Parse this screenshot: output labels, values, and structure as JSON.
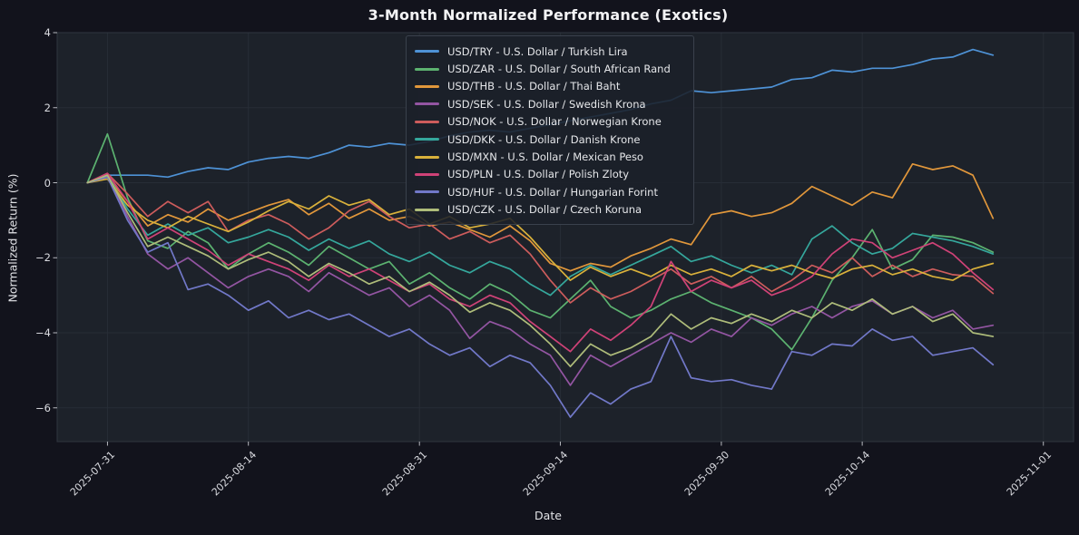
{
  "figure": {
    "title": "3-Month Normalized Performance (Exotics)",
    "background_color": "#12131c",
    "plot_background_color": "#1d222a",
    "grid_color": "#272d36",
    "axis_text_color": "#dadbe0"
  },
  "chart_data": {
    "type": "line",
    "title": "3-Month Normalized Performance (Exotics)",
    "xlabel": "Date",
    "ylabel": "Normalized Return (%)",
    "grid": true,
    "legend_position": "upper center",
    "x_range": [
      "2025-07-26",
      "2025-11-04"
    ],
    "y_range": [
      -6.9,
      4.0
    ],
    "x_ticks": [
      "2025-07-31",
      "2025-08-14",
      "2025-08-31",
      "2025-09-14",
      "2025-09-30",
      "2025-10-14",
      "2025-11-01"
    ],
    "y_ticks": [
      4,
      2,
      0,
      -2,
      -4,
      -6
    ],
    "y_tick_labels": [
      "4",
      "2",
      "0",
      "−2",
      "−4",
      "−6"
    ],
    "x": [
      "2025-07-29",
      "2025-07-31",
      "2025-08-02",
      "2025-08-04",
      "2025-08-06",
      "2025-08-08",
      "2025-08-10",
      "2025-08-12",
      "2025-08-14",
      "2025-08-16",
      "2025-08-18",
      "2025-08-20",
      "2025-08-22",
      "2025-08-24",
      "2025-08-26",
      "2025-08-28",
      "2025-08-30",
      "2025-09-01",
      "2025-09-03",
      "2025-09-05",
      "2025-09-07",
      "2025-09-09",
      "2025-09-11",
      "2025-09-13",
      "2025-09-15",
      "2025-09-17",
      "2025-09-19",
      "2025-09-21",
      "2025-09-23",
      "2025-09-25",
      "2025-09-27",
      "2025-09-29",
      "2025-10-01",
      "2025-10-03",
      "2025-10-05",
      "2025-10-07",
      "2025-10-09",
      "2025-10-11",
      "2025-10-13",
      "2025-10-15",
      "2025-10-17",
      "2025-10-19",
      "2025-10-21",
      "2025-10-23",
      "2025-10-25",
      "2025-10-27"
    ],
    "series": [
      {
        "pair": "USD/TRY",
        "label": "USD/TRY - U.S. Dollar / Turkish Lira",
        "color": "#4e92d6",
        "values": [
          0,
          0.2,
          0.2,
          0.2,
          0.15,
          0.3,
          0.4,
          0.35,
          0.55,
          0.65,
          0.7,
          0.65,
          0.8,
          1,
          0.95,
          1.05,
          1,
          1.1,
          1.25,
          1.35,
          1.4,
          1.35,
          1.45,
          1.55,
          1.65,
          1.75,
          1.85,
          1.95,
          2.1,
          2.2,
          2.45,
          2.4,
          2.45,
          2.5,
          2.55,
          2.75,
          2.8,
          3,
          2.95,
          3.05,
          3.05,
          3.15,
          3.3,
          3.35,
          3.55,
          3.4
        ]
      },
      {
        "pair": "USD/ZAR",
        "label": "USD/ZAR - U.S. Dollar / South African Rand",
        "color": "#5cb270",
        "values": [
          0,
          1.3,
          -0.4,
          -1.55,
          -1.75,
          -1.3,
          -1.6,
          -2.3,
          -1.9,
          -1.6,
          -1.85,
          -2.2,
          -1.7,
          -2,
          -2.3,
          -2.1,
          -2.7,
          -2.4,
          -2.8,
          -3.1,
          -2.7,
          -2.95,
          -3.4,
          -3.6,
          -3.1,
          -2.6,
          -3.3,
          -3.6,
          -3.4,
          -3.1,
          -2.9,
          -3.2,
          -3.4,
          -3.6,
          -3.9,
          -4.45,
          -3.6,
          -2.6,
          -2,
          -1.25,
          -2.3,
          -2.05,
          -1.4,
          -1.45,
          -1.6,
          -1.85
        ]
      },
      {
        "pair": "USD/THB",
        "label": "USD/THB - U.S. Dollar / Thai Baht",
        "color": "#e1973b",
        "values": [
          0,
          0.15,
          -0.5,
          -1.15,
          -0.85,
          -1.05,
          -0.7,
          -1,
          -0.8,
          -0.6,
          -0.45,
          -0.85,
          -0.55,
          -0.95,
          -0.7,
          -1,
          -0.9,
          -1.15,
          -1.05,
          -1.25,
          -1.45,
          -1.15,
          -1.55,
          -2.15,
          -2.35,
          -2.15,
          -2.25,
          -1.95,
          -1.75,
          -1.5,
          -1.65,
          -0.85,
          -0.75,
          -0.9,
          -0.8,
          -0.55,
          -0.1,
          -0.35,
          -0.6,
          -0.25,
          -0.4,
          0.5,
          0.35,
          0.45,
          0.2,
          -0.95
        ]
      },
      {
        "pair": "USD/SEK",
        "label": "USD/SEK - U.S. Dollar / Swedish Krona",
        "color": "#9355a2",
        "values": [
          0,
          0.2,
          -0.9,
          -1.9,
          -2.3,
          -2,
          -2.4,
          -2.8,
          -2.5,
          -2.3,
          -2.5,
          -2.9,
          -2.4,
          -2.7,
          -3,
          -2.8,
          -3.3,
          -3,
          -3.4,
          -4.15,
          -3.7,
          -3.9,
          -4.3,
          -4.6,
          -5.4,
          -4.6,
          -4.9,
          -4.6,
          -4.3,
          -4,
          -4.25,
          -3.9,
          -4.1,
          -3.6,
          -3.8,
          -3.5,
          -3.3,
          -3.6,
          -3.3,
          -3.15,
          -3.5,
          -3.3,
          -3.6,
          -3.4,
          -3.9,
          -3.8
        ]
      },
      {
        "pair": "USD/NOK",
        "label": "USD/NOK - U.S. Dollar / Norwegian Krone",
        "color": "#cd5c5c",
        "values": [
          0,
          0.25,
          -0.3,
          -0.9,
          -0.5,
          -0.8,
          -0.5,
          -1.3,
          -1,
          -0.85,
          -1.1,
          -1.5,
          -1.2,
          -0.75,
          -0.5,
          -0.9,
          -1.2,
          -1.1,
          -1.5,
          -1.3,
          -1.6,
          -1.4,
          -1.9,
          -2.6,
          -3.2,
          -2.8,
          -3.1,
          -2.9,
          -2.6,
          -2.3,
          -2.7,
          -2.5,
          -2.8,
          -2.5,
          -2.9,
          -2.6,
          -2.2,
          -2.4,
          -2,
          -2.5,
          -2.2,
          -2.5,
          -2.3,
          -2.45,
          -2.5,
          -2.95
        ]
      },
      {
        "pair": "USD/DKK",
        "label": "USD/DKK - U.S. Dollar / Danish Krone",
        "color": "#35a79c",
        "values": [
          0,
          0.2,
          -0.7,
          -1.4,
          -1.1,
          -1.4,
          -1.2,
          -1.6,
          -1.45,
          -1.25,
          -1.45,
          -1.8,
          -1.5,
          -1.75,
          -1.55,
          -1.9,
          -2.1,
          -1.85,
          -2.2,
          -2.4,
          -2.1,
          -2.3,
          -2.7,
          -3,
          -2.5,
          -2.2,
          -2.45,
          -2.2,
          -1.95,
          -1.7,
          -2.1,
          -1.95,
          -2.2,
          -2.4,
          -2.2,
          -2.45,
          -1.5,
          -1.15,
          -1.6,
          -1.9,
          -1.75,
          -1.35,
          -1.45,
          -1.55,
          -1.7,
          -1.9
        ]
      },
      {
        "pair": "USD/MXN",
        "label": "USD/MXN - U.S. Dollar / Mexican Peso",
        "color": "#d9b13b",
        "values": [
          0,
          0.1,
          -0.6,
          -1,
          -1.2,
          -0.9,
          -1.1,
          -1.3,
          -1.05,
          -0.75,
          -0.5,
          -0.7,
          -0.35,
          -0.6,
          -0.45,
          -0.85,
          -0.7,
          -1.1,
          -0.9,
          -1.2,
          -1.1,
          -0.95,
          -1.45,
          -2.05,
          -2.6,
          -2.25,
          -2.5,
          -2.3,
          -2.5,
          -2.2,
          -2.45,
          -2.3,
          -2.5,
          -2.2,
          -2.35,
          -2.2,
          -2.4,
          -2.55,
          -2.3,
          -2.2,
          -2.45,
          -2.3,
          -2.5,
          -2.6,
          -2.3,
          -2.15
        ]
      },
      {
        "pair": "USD/PLN",
        "label": "USD/PLN - U.S. Dollar / Polish Zloty",
        "color": "#cf4277",
        "values": [
          0,
          0.25,
          -0.5,
          -1.5,
          -1.2,
          -1.5,
          -1.8,
          -2.2,
          -1.9,
          -2.1,
          -2.3,
          -2.6,
          -2.2,
          -2.5,
          -2.3,
          -2.6,
          -2.9,
          -2.7,
          -3.1,
          -3.3,
          -3,
          -3.2,
          -3.7,
          -4.1,
          -4.5,
          -3.9,
          -4.2,
          -3.8,
          -3.3,
          -2.1,
          -2.9,
          -2.6,
          -2.8,
          -2.6,
          -3,
          -2.8,
          -2.5,
          -1.9,
          -1.5,
          -1.6,
          -2,
          -1.8,
          -1.6,
          -1.9,
          -2.4,
          -2.85
        ]
      },
      {
        "pair": "USD/HUF",
        "label": "USD/HUF - U.S. Dollar / Hungarian Forint",
        "color": "#7178c8",
        "values": [
          0,
          0.15,
          -1,
          -1.85,
          -1.6,
          -2.85,
          -2.7,
          -3,
          -3.4,
          -3.15,
          -3.6,
          -3.4,
          -3.65,
          -3.5,
          -3.8,
          -4.1,
          -3.9,
          -4.3,
          -4.6,
          -4.4,
          -4.9,
          -4.6,
          -4.8,
          -5.4,
          -6.25,
          -5.6,
          -5.9,
          -5.5,
          -5.3,
          -4.1,
          -5.2,
          -5.3,
          -5.25,
          -5.4,
          -5.5,
          -4.5,
          -4.6,
          -4.3,
          -4.35,
          -3.9,
          -4.2,
          -4.1,
          -4.6,
          -4.5,
          -4.4,
          -4.85
        ]
      },
      {
        "pair": "USD/CZK",
        "label": "USD/CZK - U.S. Dollar / Czech Koruna",
        "color": "#aebc7a",
        "values": [
          0,
          0.2,
          -0.8,
          -1.7,
          -1.45,
          -1.7,
          -1.95,
          -2.3,
          -2.05,
          -1.85,
          -2.1,
          -2.5,
          -2.15,
          -2.4,
          -2.7,
          -2.5,
          -2.9,
          -2.65,
          -3,
          -3.45,
          -3.2,
          -3.4,
          -3.8,
          -4.3,
          -4.9,
          -4.3,
          -4.6,
          -4.4,
          -4.1,
          -3.5,
          -3.9,
          -3.6,
          -3.75,
          -3.5,
          -3.7,
          -3.4,
          -3.6,
          -3.2,
          -3.4,
          -3.1,
          -3.5,
          -3.3,
          -3.7,
          -3.5,
          -4,
          -4.1
        ]
      }
    ]
  }
}
